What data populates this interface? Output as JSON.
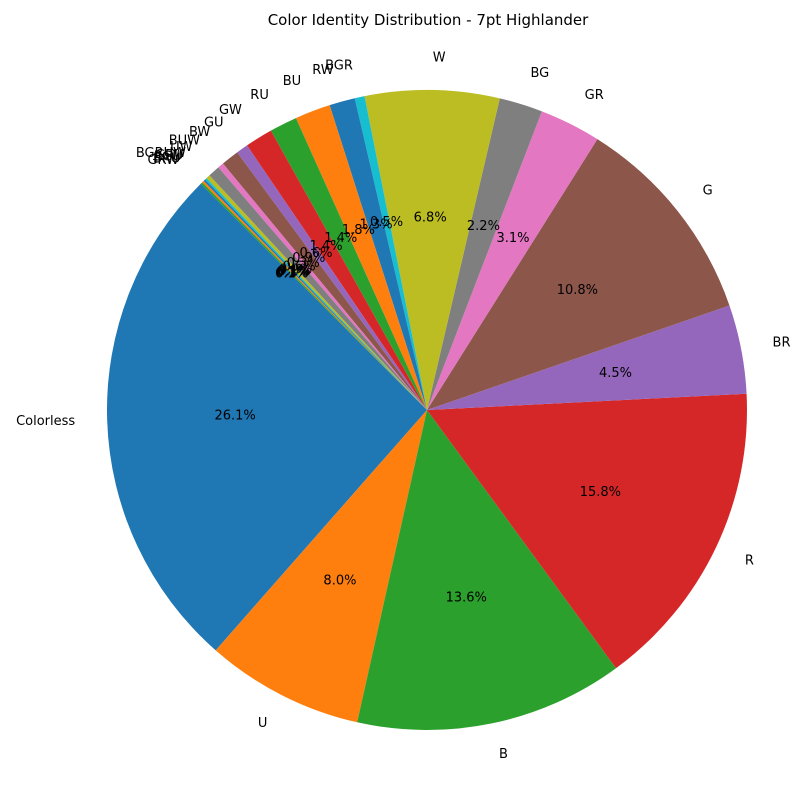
{
  "chart_data": {
    "type": "pie",
    "title": "Color Identity Distribution - 7pt Highlander",
    "start_angle_deg": 135,
    "direction": "counterclockwise",
    "slices": [
      {
        "label": "Colorless",
        "value": 26.1,
        "pct_label": "26.1%",
        "color": "#1f77b4"
      },
      {
        "label": "U",
        "value": 8.0,
        "pct_label": "8.0%",
        "color": "#ff7f0e"
      },
      {
        "label": "B",
        "value": 13.6,
        "pct_label": "13.6%",
        "color": "#2ca02c"
      },
      {
        "label": "R",
        "value": 15.8,
        "pct_label": "15.8%",
        "color": "#d62728"
      },
      {
        "label": "BR",
        "value": 4.5,
        "pct_label": "4.5%",
        "color": "#9467bd"
      },
      {
        "label": "G",
        "value": 10.8,
        "pct_label": "10.8%",
        "color": "#8c564b"
      },
      {
        "label": "GR",
        "value": 3.1,
        "pct_label": "3.1%",
        "color": "#e377c2"
      },
      {
        "label": "BG",
        "value": 2.2,
        "pct_label": "2.2%",
        "color": "#7f7f7f"
      },
      {
        "label": "W",
        "value": 6.8,
        "pct_label": "6.8%",
        "color": "#bcbd22"
      },
      {
        "label": "BGR",
        "value": 0.5,
        "pct_label": "0.5%",
        "color": "#17becf"
      },
      {
        "label": "RW",
        "value": 1.3,
        "pct_label": "1.3%",
        "color": "#1f77b4"
      },
      {
        "label": "BU",
        "value": 1.8,
        "pct_label": "1.8%",
        "color": "#ff7f0e"
      },
      {
        "label": "RU",
        "value": 1.4,
        "pct_label": "1.4%",
        "color": "#2ca02c"
      },
      {
        "label": "GW",
        "value": 1.4,
        "pct_label": "1.4%",
        "color": "#d62728"
      },
      {
        "label": "GU",
        "value": 0.6,
        "pct_label": "0.6%",
        "color": "#9467bd"
      },
      {
        "label": "BW",
        "value": 0.9,
        "pct_label": "0.9%",
        "color": "#8c564b"
      },
      {
        "label": "BUW",
        "value": 0.3,
        "pct_label": "0.3%",
        "color": "#e377c2"
      },
      {
        "label": "UW",
        "value": 0.6,
        "pct_label": "0.6%",
        "color": "#7f7f7f"
      },
      {
        "label": "BGRUW",
        "value": 0.2,
        "pct_label": "0.2%",
        "color": "#bcbd22"
      },
      {
        "label": "GRU",
        "value": 0.1,
        "pct_label": "0.1%",
        "color": "#17becf"
      },
      {
        "label": "BGU",
        "value": 0.1,
        "pct_label": "0.1%",
        "color": "#1f77b4"
      },
      {
        "label": "BRU",
        "value": 0.1,
        "pct_label": "0.1%",
        "color": "#ff7f0e"
      },
      {
        "label": "GRW",
        "value": 0.1,
        "pct_label": "0.1%",
        "color": "#2ca02c"
      }
    ]
  }
}
